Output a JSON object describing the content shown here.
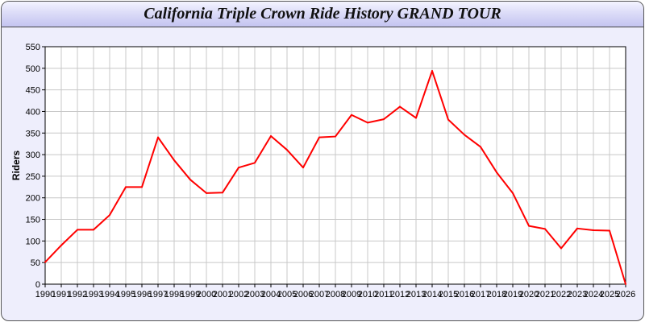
{
  "chart_data": {
    "type": "line",
    "title": "California Triple Crown Ride History GRAND TOUR",
    "xlabel": "",
    "ylabel": "Riders",
    "ylim": [
      0,
      550
    ],
    "yticks": [
      0,
      50,
      100,
      150,
      200,
      250,
      300,
      350,
      400,
      450,
      500,
      550
    ],
    "grid": true,
    "x": [
      "1990",
      "1991",
      "1992",
      "1993",
      "1994",
      "1995",
      "1996",
      "1997",
      "1998",
      "1999",
      "2000",
      "2001",
      "2002",
      "2003",
      "2004",
      "2005",
      "2006",
      "2007",
      "2008",
      "2009",
      "2010",
      "2011",
      "2012",
      "2013",
      "2014",
      "2015",
      "2016",
      "2017",
      "2018",
      "2019",
      "2020",
      "2021",
      "2022",
      "2023",
      "2024",
      "2025",
      "2026"
    ],
    "series": [
      {
        "values": [
          51,
          90,
          126,
          126,
          160,
          225,
          225,
          340,
          287,
          242,
          211,
          212,
          270,
          281,
          343,
          311,
          270,
          340,
          342,
          392,
          374,
          382,
          411,
          385,
          494,
          381,
          346,
          318,
          259,
          211,
          135,
          128,
          83,
          129,
          125,
          124,
          0
        ],
        "color": "#ff0000"
      }
    ]
  }
}
